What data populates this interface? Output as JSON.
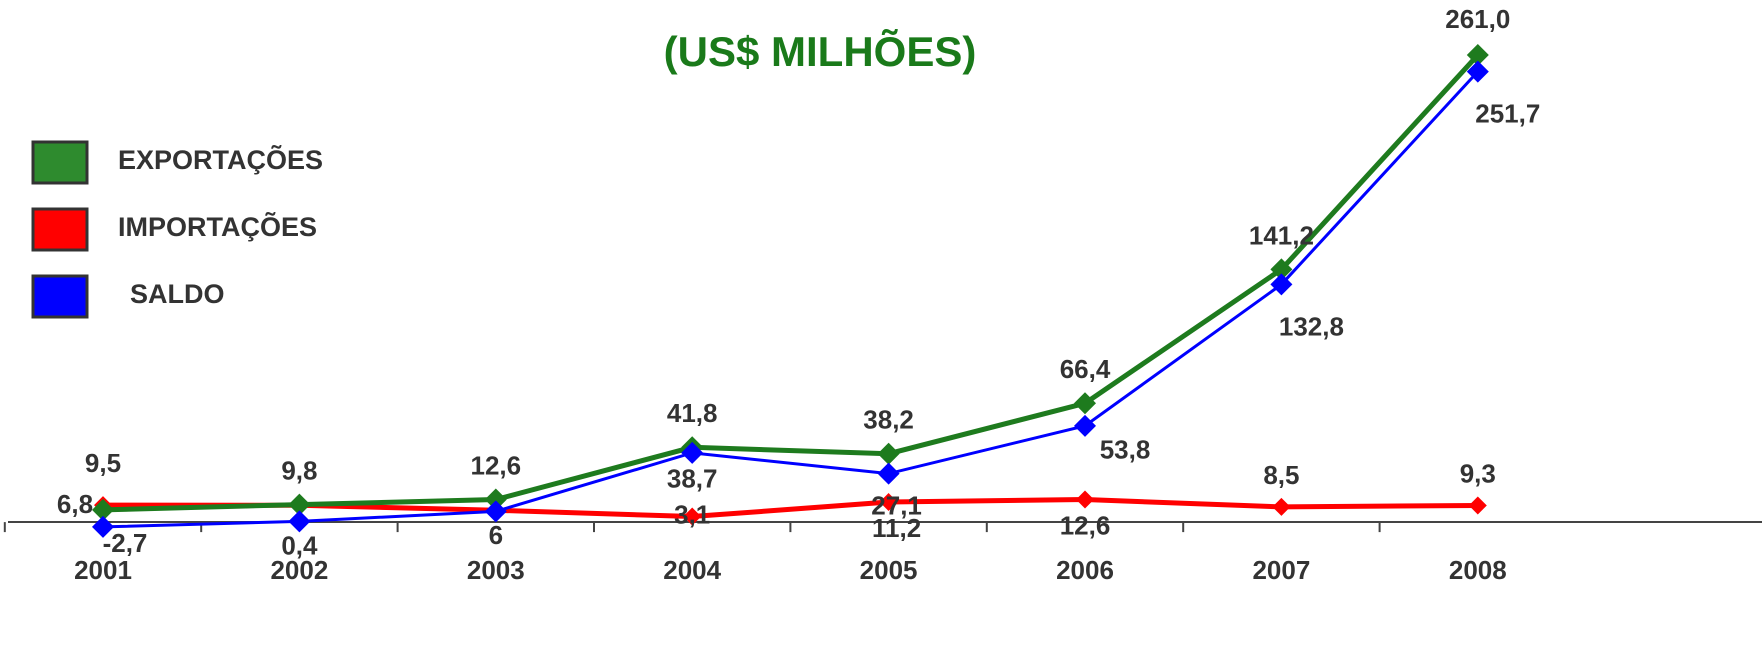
{
  "chart_data": {
    "type": "line",
    "title": "(US$ MILHÕES)",
    "categories": [
      "2001",
      "2002",
      "2003",
      "2004",
      "2005",
      "2006",
      "2007",
      "2008"
    ],
    "ylim": [
      -10,
      280
    ],
    "series": [
      {
        "name": "EXPORTAÇÕES",
        "color": "#1e7b1e",
        "legend_color": "#2e8b2e",
        "values": [
          6.8,
          9.8,
          12.6,
          41.8,
          38.2,
          66.4,
          141.2,
          261.0
        ],
        "value_labels": [
          "6,8",
          "9,8",
          "12,6",
          "41,8",
          "38,2",
          "66,4",
          "141,2",
          "261,0"
        ]
      },
      {
        "name": "IMPORTAÇÕES",
        "color": "#ff0000",
        "legend_color": "#ff0000",
        "values": [
          9.5,
          9.4,
          6.6,
          3.1,
          11.2,
          12.6,
          8.5,
          9.3
        ],
        "value_labels": [
          "9,5",
          null,
          null,
          "3,1",
          "11,2",
          "12,6",
          "8,5",
          "9,3"
        ]
      },
      {
        "name": "SALDO",
        "color": "#0000ff",
        "legend_color": "#0000ff",
        "values": [
          -2.7,
          0.4,
          6,
          38.7,
          27.1,
          53.8,
          132.8,
          251.7
        ],
        "value_labels": [
          "-2,7",
          "0,4",
          "6",
          "38,7",
          "27,1",
          "53,8",
          "132,8",
          "251,7"
        ]
      }
    ]
  }
}
